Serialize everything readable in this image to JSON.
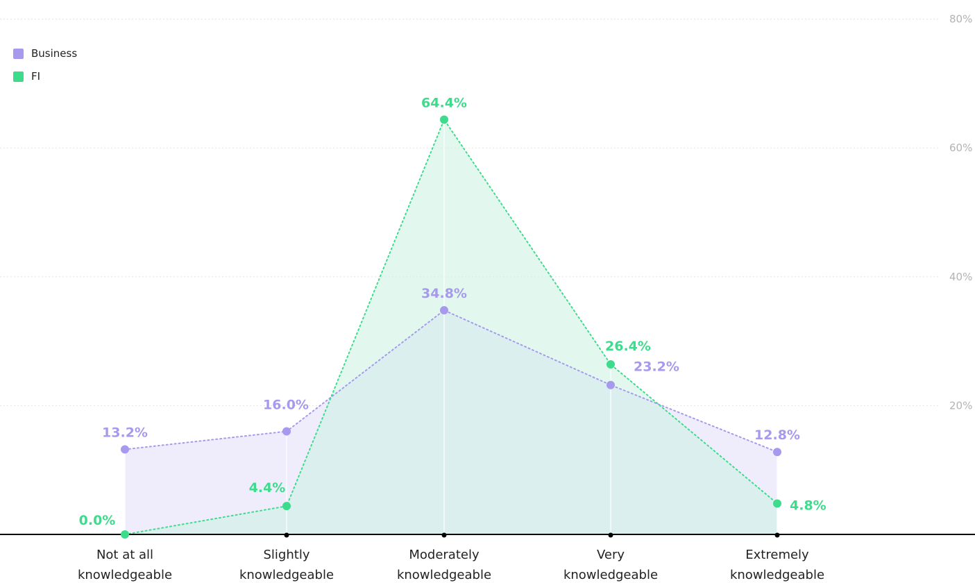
{
  "chart_data": {
    "type": "area",
    "categories": [
      [
        "Not at all",
        "knowledgeable"
      ],
      [
        "Slightly",
        "knowledgeable"
      ],
      [
        "Moderately",
        "knowledgeable"
      ],
      [
        "Very",
        "knowledgeable"
      ],
      [
        "Extremely",
        "knowledgeable"
      ]
    ],
    "series": [
      {
        "name": "Business",
        "color": "#a699ee",
        "fill": "#efecfc",
        "values": [
          13.2,
          16.0,
          34.8,
          23.2,
          12.8
        ],
        "labels": [
          "13.2%",
          "16.0%",
          "34.8%",
          "23.2%",
          "12.8%"
        ]
      },
      {
        "name": "FI",
        "color": "#3ddc8c",
        "fill": "#cbf3e1",
        "values": [
          0.0,
          4.4,
          64.4,
          26.4,
          4.8
        ],
        "labels": [
          "0.0%",
          "4.4%",
          "64.4%",
          "26.4%",
          "4.8%"
        ]
      }
    ],
    "yticks": [
      "20%",
      "40%",
      "60%",
      "80%"
    ],
    "ylim": [
      0,
      80
    ],
    "grid": true,
    "legend_position": "top-left",
    "y_axis_position": "right"
  }
}
